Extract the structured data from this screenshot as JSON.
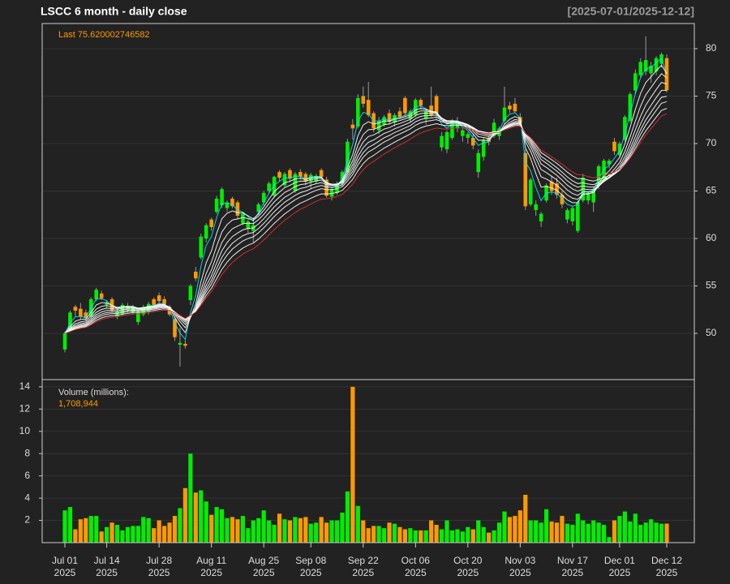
{
  "chart_data": [
    {
      "type": "candlestick",
      "title": "LSCC  6 month - daily close",
      "subtitle": "[2025-07-01/2025-12-12]",
      "annotation": "Last 75.620002746582",
      "categories": [
        "Jul 01\n2025",
        null,
        null,
        null,
        null,
        null,
        null,
        null,
        "Jul 14\n2025",
        null,
        null,
        null,
        null,
        null,
        null,
        null,
        null,
        null,
        "Jul 28\n2025",
        null,
        null,
        null,
        null,
        null,
        null,
        null,
        null,
        null,
        "Aug 11\n2025",
        null,
        null,
        null,
        null,
        null,
        null,
        null,
        null,
        null,
        "Aug 25\n2025",
        null,
        null,
        null,
        null,
        null,
        null,
        null,
        null,
        "Sep 08\n2025",
        null,
        null,
        null,
        null,
        null,
        null,
        null,
        null,
        null,
        "Sep 22\n2025",
        null,
        null,
        null,
        null,
        null,
        null,
        null,
        null,
        null,
        "Oct 06\n2025",
        null,
        null,
        null,
        null,
        null,
        null,
        null,
        null,
        null,
        "Oct 20\n2025",
        null,
        null,
        null,
        null,
        null,
        null,
        null,
        null,
        null,
        "Nov 03\n2025",
        null,
        null,
        null,
        null,
        null,
        null,
        null,
        null,
        null,
        "Nov 17\n2025",
        null,
        null,
        null,
        null,
        null,
        null,
        null,
        null,
        "Dec 01\n2025",
        null,
        null,
        null,
        null,
        null,
        null,
        null,
        null,
        "Dec 12\n2025"
      ],
      "open": [
        48.3,
        50.4,
        52.8,
        52.6,
        52.2,
        51.8,
        53.6,
        54.2,
        53.0,
        53.6,
        51.8,
        52.0,
        52.5,
        52.2,
        51.2,
        52.0,
        52.3,
        53.6,
        54.0,
        53.6,
        52.8,
        51.5,
        48.8,
        48.9,
        53.5,
        56.5,
        58.0,
        60.0,
        62.0,
        62.8,
        63.5,
        63.2,
        64.2,
        63.8,
        61.6,
        61.0,
        60.8,
        62.8,
        63.8,
        65.0,
        64.5,
        67.0,
        65.6,
        67.2,
        65.0,
        67.0,
        66.8,
        66.0,
        66.0,
        67.2,
        66.2,
        64.4,
        64.8,
        65.8,
        67.0,
        72.0,
        71.8,
        75.0,
        74.6,
        73.2,
        71.4,
        72.0,
        73.2,
        72.2,
        73.4,
        74.8,
        72.6,
        73.0,
        74.6,
        72.6,
        74.0,
        75.0,
        69.6,
        69.4,
        70.6,
        71.6,
        70.8,
        70.6,
        70.6,
        67.0,
        68.6,
        70.6,
        70.8,
        70.8,
        72.4,
        74.0,
        74.2,
        72.8,
        69.0,
        63.6,
        63.0,
        61.8,
        64.0,
        66.0,
        65.8,
        64.6,
        62.0,
        61.8,
        60.8,
        64.0,
        64.0,
        63.8,
        65.6,
        66.2,
        67.8,
        70.2,
        68.8,
        70.4,
        72.4,
        75.6,
        77.2,
        77.6,
        77.4,
        77.6,
        78.4,
        79.0
      ],
      "high": [
        50.2,
        52.4,
        53.0,
        53.2,
        52.5,
        53.8,
        54.8,
        54.5,
        53.5,
        53.8,
        52.6,
        53.2,
        53.2,
        53.0,
        52.5,
        53.0,
        53.3,
        53.8,
        54.3,
        53.9,
        53.0,
        51.8,
        50.6,
        49.3,
        55.2,
        57.0,
        60.5,
        61.6,
        62.2,
        64.5,
        65.4,
        64.0,
        64.4,
        64.0,
        62.8,
        62.0,
        62.2,
        63.8,
        65.0,
        66.0,
        66.6,
        67.2,
        67.0,
        67.4,
        67.0,
        67.3,
        67.0,
        66.9,
        66.8,
        67.4,
        66.5,
        65.4,
        66.0,
        67.2,
        70.5,
        72.6,
        75.2,
        76.0,
        76.5,
        73.4,
        72.8,
        73.0,
        73.6,
        73.2,
        73.8,
        75.0,
        73.6,
        74.8,
        74.8,
        73.6,
        76.0,
        75.2,
        71.2,
        71.4,
        72.6,
        72.8,
        71.6,
        71.2,
        71.0,
        69.4,
        70.6,
        70.8,
        72.6,
        71.8,
        76.0,
        74.4,
        74.8,
        73.2,
        69.4,
        66.4,
        64.0,
        62.8,
        65.8,
        66.6,
        66.4,
        65.0,
        63.2,
        63.4,
        64.0,
        66.8,
        65.0,
        65.4,
        67.8,
        68.4,
        68.4,
        70.6,
        70.2,
        73.0,
        75.4,
        77.8,
        79.0,
        81.3,
        78.6,
        79.2,
        79.6,
        79.4
      ],
      "low": [
        48.0,
        50.2,
        51.8,
        51.5,
        51.3,
        51.6,
        53.4,
        53.5,
        52.6,
        52.2,
        51.5,
        51.9,
        52.2,
        52.0,
        50.9,
        51.8,
        52.0,
        52.8,
        53.0,
        52.8,
        51.8,
        49.2,
        46.5,
        48.4,
        53.0,
        55.5,
        57.8,
        59.6,
        60.8,
        62.6,
        63.2,
        62.8,
        63.2,
        62.0,
        61.4,
        60.6,
        59.6,
        62.5,
        63.5,
        64.8,
        64.3,
        66.0,
        65.4,
        66.0,
        64.8,
        66.2,
        65.6,
        65.2,
        65.8,
        66.3,
        64.3,
        64.0,
        64.6,
        65.5,
        66.8,
        70.4,
        71.6,
        73.8,
        72.8,
        71.2,
        71.0,
        71.8,
        72.0,
        71.8,
        72.6,
        72.8,
        72.2,
        72.8,
        73.6,
        72.0,
        72.8,
        72.6,
        69.2,
        69.0,
        70.4,
        71.2,
        70.2,
        70.0,
        69.4,
        66.4,
        68.2,
        69.8,
        70.6,
        70.4,
        72.0,
        73.2,
        73.2,
        71.8,
        63.0,
        63.4,
        62.4,
        61.2,
        63.8,
        64.6,
        64.2,
        63.2,
        61.6,
        61.4,
        60.6,
        63.8,
        63.6,
        62.8,
        65.2,
        66.0,
        67.4,
        68.8,
        68.6,
        70.2,
        72.2,
        75.2,
        77.0,
        77.2,
        76.4,
        77.2,
        78.0,
        75.4
      ],
      "close": [
        50.0,
        52.2,
        52.4,
        51.8,
        51.6,
        53.6,
        54.6,
        53.7,
        53.2,
        52.4,
        52.3,
        53.0,
        52.9,
        52.8,
        52.3,
        52.8,
        53.1,
        53.0,
        53.4,
        53.1,
        52.0,
        49.6,
        49.0,
        48.7,
        55.0,
        55.8,
        60.2,
        61.4,
        61.2,
        64.2,
        65.2,
        63.8,
        63.4,
        62.4,
        62.6,
        61.8,
        61.4,
        63.6,
        64.8,
        65.8,
        66.5,
        66.4,
        66.8,
        66.3,
        66.8,
        66.5,
        66.0,
        66.7,
        66.6,
        66.5,
        64.5,
        65.2,
        65.8,
        67.0,
        70.2,
        71.6,
        74.8,
        74.2,
        73.0,
        71.6,
        72.4,
        72.8,
        72.3,
        73.0,
        72.8,
        73.2,
        73.4,
        74.6,
        74.0,
        73.4,
        73.0,
        73.2,
        70.8,
        71.2,
        72.4,
        72.2,
        71.4,
        71.0,
        69.8,
        69.0,
        70.4,
        70.2,
        72.2,
        71.6,
        73.8,
        73.6,
        73.4,
        72.2,
        63.4,
        66.2,
        63.6,
        62.6,
        65.6,
        65.0,
        64.6,
        63.6,
        63.0,
        63.2,
        63.8,
        66.4,
        64.8,
        65.2,
        67.6,
        68.2,
        68.2,
        69.2,
        70.0,
        72.8,
        75.2,
        77.4,
        78.6,
        78.8,
        78.2,
        79.0,
        79.4,
        75.620002746582
      ],
      "ylim": [
        45.13,
        82.65
      ],
      "yticks": [
        50,
        55,
        60,
        65,
        70,
        75,
        80
      ],
      "grid": true,
      "up_color": "#00ee00",
      "down_color": "#ff9900",
      "moving_averages": [
        {
          "period": 3,
          "color": "#00e5ff"
        },
        {
          "period": 5,
          "color": "#ffffff"
        },
        {
          "period": 7,
          "color": "#ffffff"
        },
        {
          "period": 9,
          "color": "#ffffff"
        },
        {
          "period": 11,
          "color": "#ffffff"
        },
        {
          "period": 13,
          "color": "#ffffff"
        },
        {
          "period": 15,
          "color": "#ffffff"
        },
        {
          "period": 18,
          "color": "#ffffff"
        },
        {
          "period": 21,
          "color": "#e03030"
        }
      ]
    },
    {
      "type": "volume",
      "label": "Volume (millions):",
      "values": [
        2.9,
        3.2,
        1.2,
        2.1,
        2.2,
        2.4,
        2.4,
        1.0,
        1.4,
        1.8,
        1.6,
        1.1,
        1.4,
        1.5,
        1.5,
        2.3,
        2.2,
        1.3,
        2.0,
        1.5,
        1.8,
        2.4,
        3.1,
        4.9,
        8.0,
        4.5,
        4.7,
        3.7,
        2.5,
        3.2,
        3.0,
        2.2,
        2.3,
        2.1,
        2.4,
        1.3,
        2.0,
        2.2,
        2.9,
        2.0,
        1.6,
        2.6,
        2.1,
        2.0,
        2.3,
        2.2,
        2.3,
        1.7,
        1.8,
        2.3,
        1.8,
        2.0,
        2.0,
        2.7,
        4.6,
        14.0,
        3.3,
        2.0,
        1.3,
        1.5,
        1.5,
        1.3,
        1.8,
        1.7,
        1.4,
        1.2,
        1.3,
        1.1,
        1.1,
        1.1,
        2.0,
        1.6,
        1.2,
        2.0,
        1.1,
        1.2,
        1.0,
        1.4,
        1.2,
        2.0,
        1.4,
        0.9,
        1.1,
        1.8,
        2.8,
        2.3,
        2.4,
        2.9,
        4.3,
        2.0,
        2.0,
        1.8,
        3.0,
        1.9,
        1.8,
        2.4,
        1.7,
        1.6,
        2.6,
        2.0,
        1.7,
        2.0,
        1.8,
        1.6,
        0.5,
        2.0,
        2.4,
        2.8,
        1.9,
        2.6,
        1.6,
        1.8,
        2.1,
        1.8,
        1.7,
        1.708944
      ],
      "value_labels": [
        null,
        null,
        null,
        null,
        null,
        null,
        null,
        null,
        null,
        null,
        null,
        null,
        null,
        null,
        null,
        null,
        null,
        null,
        null,
        null,
        null,
        null,
        null,
        null,
        null,
        null,
        null,
        null,
        null,
        null,
        null,
        null,
        null,
        null,
        null,
        null,
        null,
        null,
        null,
        null,
        null,
        null,
        null,
        null,
        null,
        null,
        null,
        null,
        null,
        null,
        null,
        null,
        null,
        null,
        null,
        null,
        null,
        null,
        null,
        null,
        null,
        null,
        null,
        null,
        null,
        null,
        null,
        null,
        null,
        null,
        null,
        null,
        null,
        null,
        null,
        null,
        null,
        null,
        null,
        null,
        null,
        null,
        null,
        null,
        null,
        null,
        null,
        null,
        null,
        null,
        null,
        null,
        null,
        null,
        null,
        null,
        null,
        null,
        null,
        null,
        null,
        null,
        null,
        null,
        null,
        null,
        null,
        null,
        null,
        null,
        null,
        null,
        null,
        null,
        null,
        "1,708,944"
      ],
      "ylim": [
        0,
        14.65
      ],
      "yticks": [
        2,
        4,
        6,
        8,
        10,
        12,
        14
      ],
      "grid": true
    }
  ]
}
